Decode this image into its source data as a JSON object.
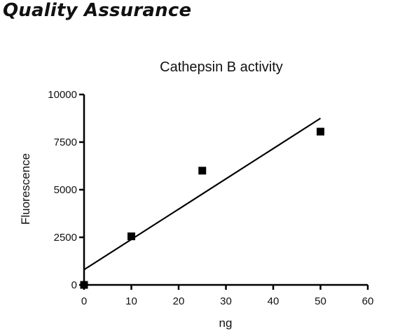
{
  "page": {
    "heading": "Quality Assurance"
  },
  "chart_data": {
    "type": "scatter",
    "title": "Cathepsin B activity",
    "xlabel": "ng",
    "ylabel": "Fluorescence",
    "xlim": [
      0,
      60
    ],
    "ylim": [
      0,
      10000
    ],
    "x_ticks": [
      0,
      10,
      20,
      30,
      40,
      50,
      60
    ],
    "y_ticks": [
      0,
      2500,
      5000,
      7500,
      10000
    ],
    "grid": false,
    "series": [
      {
        "x": [
          0,
          10,
          25,
          50
        ],
        "y": [
          0,
          2550,
          6000,
          8050
        ],
        "marker": "square",
        "color": "#000000"
      }
    ],
    "fit_line": {
      "x": [
        0,
        50
      ],
      "y": [
        800,
        8750
      ],
      "color": "#000000"
    }
  }
}
